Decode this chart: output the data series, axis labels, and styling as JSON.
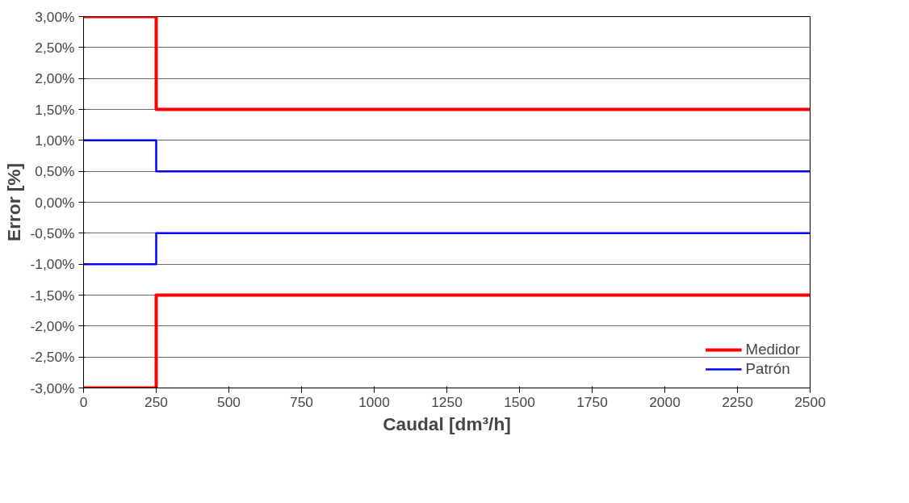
{
  "chart_data": {
    "type": "line",
    "xlabel": "Caudal [dm³/h]",
    "ylabel": "Error [%]",
    "series": [
      {
        "name": "Medidor",
        "color": "#ff0000",
        "x": [
          0,
          250,
          250,
          2500,
          null,
          0,
          250,
          250,
          2500
        ],
        "values": [
          3,
          3,
          1.5,
          1.5,
          null,
          -3,
          -3,
          -1.5,
          -1.5
        ]
      },
      {
        "name": "Patrón",
        "color": "#0000ff",
        "x": [
          0,
          250,
          250,
          2500,
          null,
          0,
          250,
          250,
          2500
        ],
        "values": [
          1,
          1,
          0.5,
          0.5,
          null,
          -1,
          -1,
          -0.5,
          -0.5
        ]
      }
    ],
    "xlim": [
      0,
      2500
    ],
    "xticks": [
      0,
      250,
      500,
      750,
      1000,
      1250,
      1500,
      1750,
      2000,
      2250,
      2500
    ],
    "ylim": [
      -3,
      3
    ],
    "yticks": [
      {
        "value": 3,
        "label": "3,00%"
      },
      {
        "value": 2.5,
        "label": "2,50%"
      },
      {
        "value": 2,
        "label": "2,00%"
      },
      {
        "value": 1.5,
        "label": "1,50%"
      },
      {
        "value": 1,
        "label": "1,00%"
      },
      {
        "value": 0.5,
        "label": "0,50%"
      },
      {
        "value": 0,
        "label": "0,00%"
      },
      {
        "value": -0.5,
        "label": "-0,50%"
      },
      {
        "value": -1,
        "label": "-1,00%"
      },
      {
        "value": -1.5,
        "label": "-1,50%"
      },
      {
        "value": -2,
        "label": "-2,00%"
      },
      {
        "value": -2.5,
        "label": "-2,50%"
      },
      {
        "value": -3,
        "label": "-3,00%"
      }
    ],
    "grid": "y",
    "legend": "bottom right",
    "marker": "none",
    "line_style": "solid"
  }
}
